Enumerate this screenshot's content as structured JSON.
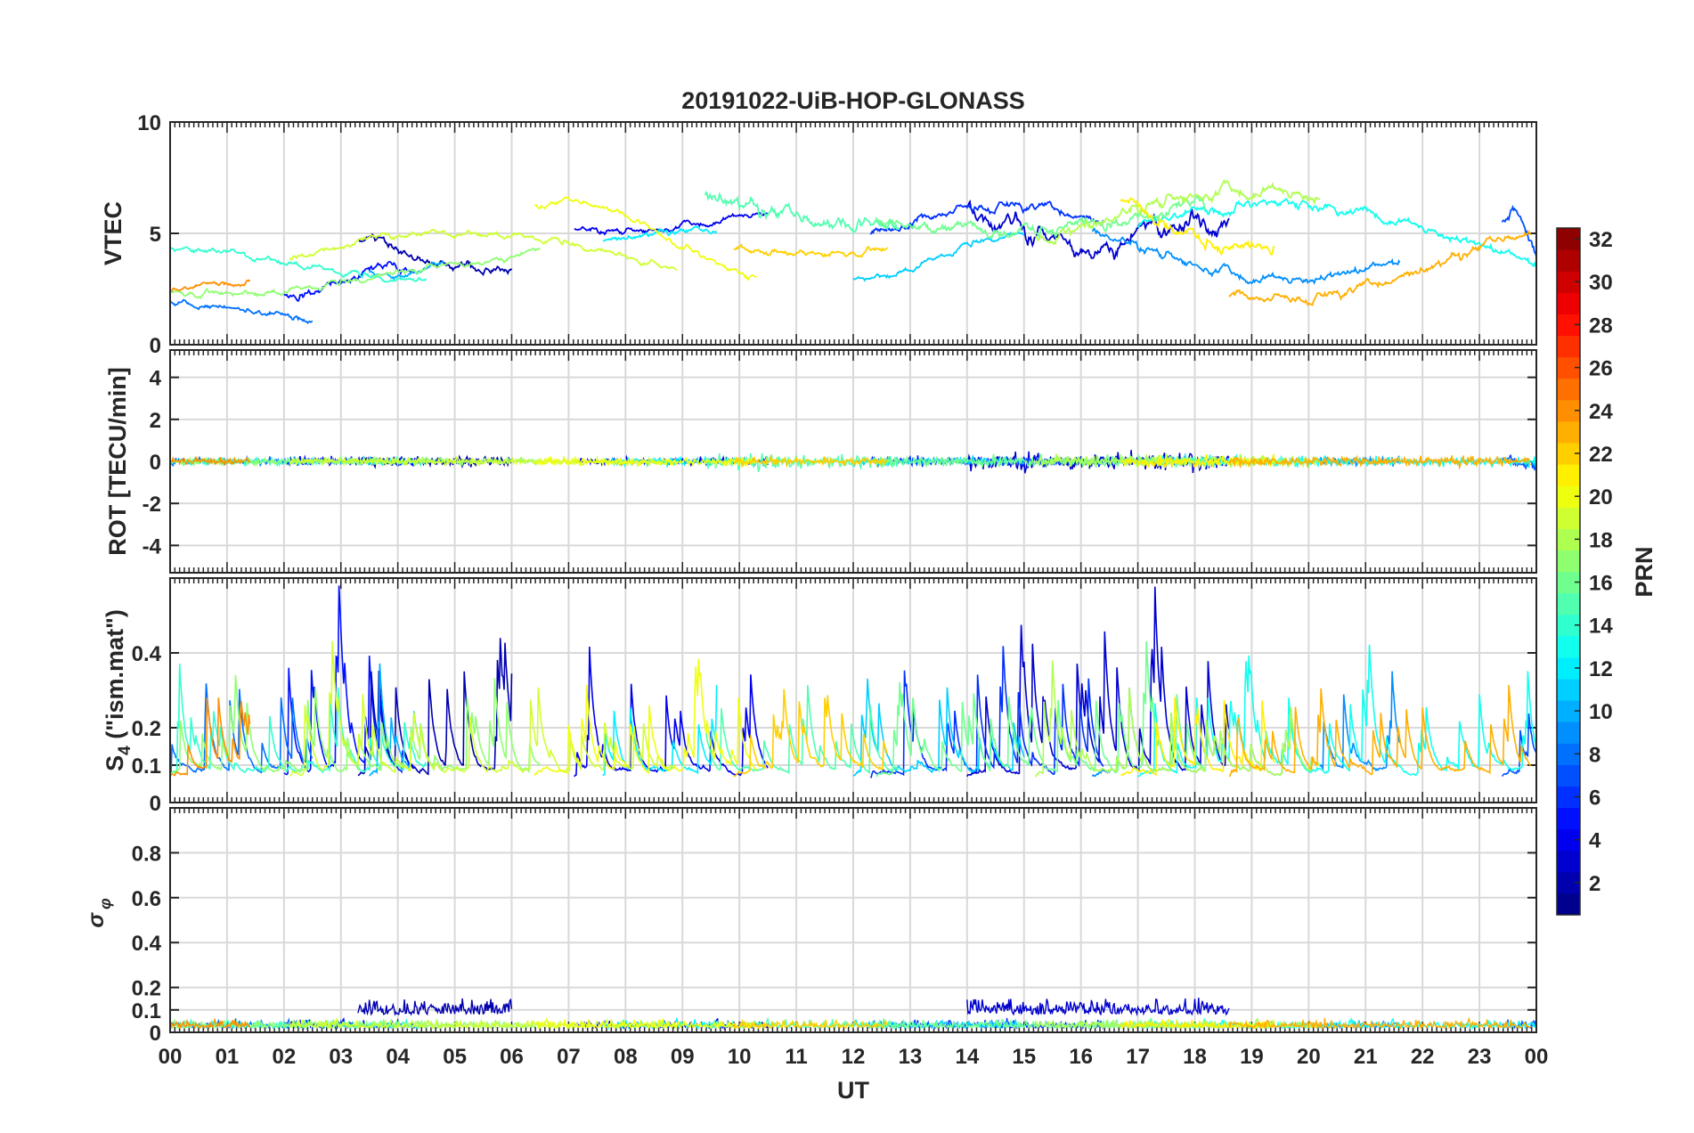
{
  "chart_data": {
    "type": "line",
    "title": "20191022-UiB-HOP-GLONASS",
    "xlabel": "UT",
    "x_tick_labels": [
      "00",
      "01",
      "02",
      "03",
      "04",
      "05",
      "06",
      "07",
      "08",
      "09",
      "10",
      "11",
      "12",
      "13",
      "14",
      "15",
      "16",
      "17",
      "18",
      "19",
      "20",
      "21",
      "22",
      "23",
      "00"
    ],
    "xlim_hours": [
      0,
      24
    ],
    "colorbar": {
      "label": "PRN",
      "range": [
        1,
        32
      ],
      "tick_labels": [
        "2",
        "4",
        "6",
        "8",
        "10",
        "12",
        "14",
        "16",
        "18",
        "20",
        "22",
        "24",
        "26",
        "28",
        "30",
        "32"
      ]
    },
    "panels": [
      {
        "name": "vtec",
        "ylabel": "VTEC",
        "ylim": [
          0,
          10
        ],
        "tick_labels": [
          "0",
          "5",
          "10"
        ],
        "tick_values": [
          0,
          5,
          10
        ],
        "series": [
          {
            "prn": 2,
            "start": 3.3,
            "end": 6.0,
            "level": 4.1,
            "amp": 0.6,
            "noise": 0.3
          },
          {
            "prn": 3,
            "start": 14.0,
            "end": 18.6,
            "level": 6.0,
            "amp": 1.4,
            "noise": 0.6
          },
          {
            "prn": 4,
            "start": 7.1,
            "end": 10.5,
            "level": 5.6,
            "amp": 0.5,
            "noise": 0.2
          },
          {
            "prn": 5,
            "start": 2.0,
            "end": 4.3,
            "level": 2.8,
            "amp": 0.6,
            "noise": 0.3
          },
          {
            "prn": 6,
            "start": 12.3,
            "end": 16.4,
            "level": 5.2,
            "amp": 1.0,
            "noise": 0.3
          },
          {
            "prn": 7,
            "start": 23.4,
            "end": 24.0,
            "level": 4.8,
            "amp": 1.2,
            "noise": 0.4
          },
          {
            "prn": 8,
            "start": 0.0,
            "end": 2.5,
            "level": 1.6,
            "amp": 0.4,
            "noise": 0.2
          },
          {
            "prn": 9,
            "start": 16.2,
            "end": 21.6,
            "level": 4.5,
            "amp": 1.5,
            "noise": 0.3
          },
          {
            "prn": 10,
            "start": 3.5,
            "end": 4.8,
            "level": 3.5,
            "amp": 0.4,
            "noise": 0.2
          },
          {
            "prn": 11,
            "start": 12.0,
            "end": 15.0,
            "level": 4.0,
            "amp": 1.0,
            "noise": 0.2
          },
          {
            "prn": 12,
            "start": 7.6,
            "end": 9.6,
            "level": 4.8,
            "amp": 0.3,
            "noise": 0.2
          },
          {
            "prn": 13,
            "start": 17.0,
            "end": 24.0,
            "level": 4.5,
            "amp": 1.8,
            "noise": 0.3
          },
          {
            "prn": 14,
            "start": 0.0,
            "end": 4.5,
            "level": 3.6,
            "amp": 0.7,
            "noise": 0.2
          },
          {
            "prn": 15,
            "start": 9.4,
            "end": 12.8,
            "level": 6.3,
            "amp": 1.0,
            "noise": 0.5
          },
          {
            "prn": 16,
            "start": 12.4,
            "end": 18.2,
            "level": 6.0,
            "amp": 0.8,
            "noise": 0.4
          },
          {
            "prn": 17,
            "start": 0.0,
            "end": 6.5,
            "level": 3.2,
            "amp": 0.9,
            "noise": 0.2
          },
          {
            "prn": 18,
            "start": 15.2,
            "end": 20.2,
            "level": 5.8,
            "amp": 1.2,
            "noise": 0.4
          },
          {
            "prn": 19,
            "start": 2.1,
            "end": 8.9,
            "level": 3.6,
            "amp": 1.5,
            "noise": 0.2
          },
          {
            "prn": 20,
            "start": 6.4,
            "end": 10.3,
            "level": 4.6,
            "amp": 1.8,
            "noise": 0.2
          },
          {
            "prn": 21,
            "start": 16.7,
            "end": 19.4,
            "level": 5.5,
            "amp": 1.2,
            "noise": 0.4
          },
          {
            "prn": 22,
            "start": 9.9,
            "end": 12.6,
            "level": 4.3,
            "amp": 0.3,
            "noise": 0.2
          },
          {
            "prn": 23,
            "start": 18.6,
            "end": 23.9,
            "level": 3.6,
            "amp": 1.6,
            "noise": 0.3
          },
          {
            "prn": 24,
            "start": 0.0,
            "end": 1.4,
            "level": 2.6,
            "amp": 0.2,
            "noise": 0.15
          }
        ]
      },
      {
        "name": "rot",
        "ylabel": "ROT [TECU/min]",
        "ylim": [
          -5.3,
          5.3
        ],
        "tick_labels": [
          "-4",
          "-2",
          "0",
          "2",
          "4"
        ],
        "tick_values": [
          -4,
          -2,
          0,
          2,
          4
        ]
      },
      {
        "name": "s4",
        "ylabel": "S4 (\"ism.mat\")",
        "ylim": [
          0,
          0.6
        ],
        "tick_labels": [
          "0",
          "0.1",
          "0.2",
          "0.4"
        ],
        "tick_values": [
          0,
          0.1,
          0.2,
          0.4
        ]
      },
      {
        "name": "sigma",
        "ylabel": "σ φ",
        "ylim": [
          0,
          1.0
        ],
        "tick_labels": [
          "0",
          "0.1",
          "0.2",
          "0.4",
          "0.6",
          "0.8"
        ],
        "tick_values": [
          0,
          0.1,
          0.2,
          0.4,
          0.6,
          0.8
        ]
      }
    ],
    "grid": true,
    "legend": "colorbar-right"
  }
}
